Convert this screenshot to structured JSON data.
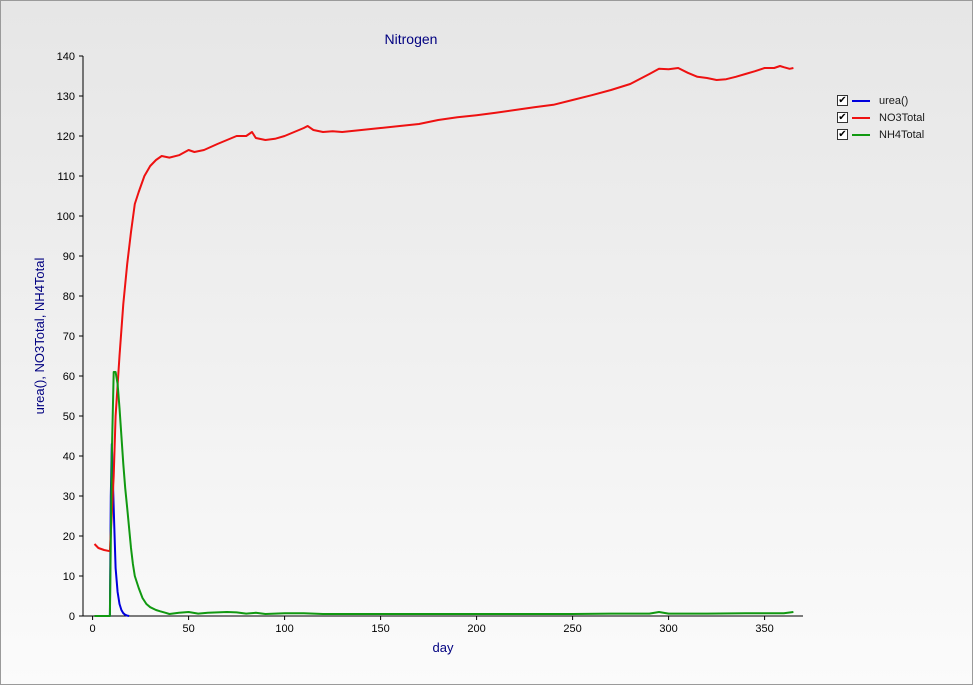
{
  "chart_data": {
    "type": "line",
    "title": "Nitrogen",
    "xlabel": "day",
    "ylabel": "urea(), NO3Total, NH4Total",
    "xlim": [
      -5,
      370
    ],
    "ylim": [
      0,
      140
    ],
    "xticks": [
      0,
      50,
      100,
      150,
      200,
      250,
      300,
      350
    ],
    "yticks": [
      0,
      10,
      20,
      30,
      40,
      50,
      60,
      70,
      80,
      90,
      100,
      110,
      120,
      130,
      140
    ],
    "grid": false,
    "legend_position": "right",
    "series": [
      {
        "name": "urea()",
        "color": "#0000dd",
        "points": [
          [
            1,
            0
          ],
          [
            9,
            0
          ],
          [
            9.5,
            30
          ],
          [
            10,
            43
          ],
          [
            11,
            27
          ],
          [
            12,
            12
          ],
          [
            13,
            6
          ],
          [
            14,
            3
          ],
          [
            15,
            1.5
          ],
          [
            16,
            0.7
          ],
          [
            17,
            0.3
          ],
          [
            18,
            0.1
          ],
          [
            19,
            0
          ]
        ]
      },
      {
        "name": "NO3Total",
        "color": "#ee1111",
        "points": [
          [
            1,
            18
          ],
          [
            3,
            17
          ],
          [
            6,
            16.5
          ],
          [
            9,
            16.2
          ],
          [
            11,
            35
          ],
          [
            12,
            50
          ],
          [
            14,
            65
          ],
          [
            16,
            78
          ],
          [
            18,
            88
          ],
          [
            20,
            96
          ],
          [
            22,
            103
          ],
          [
            24,
            106
          ],
          [
            27,
            110
          ],
          [
            30,
            112.5
          ],
          [
            33,
            114
          ],
          [
            36,
            115
          ],
          [
            40,
            114.6
          ],
          [
            45,
            115.2
          ],
          [
            50,
            116.5
          ],
          [
            53,
            116
          ],
          [
            58,
            116.5
          ],
          [
            65,
            118
          ],
          [
            70,
            119
          ],
          [
            75,
            120
          ],
          [
            80,
            120
          ],
          [
            83,
            121
          ],
          [
            85,
            119.5
          ],
          [
            90,
            119
          ],
          [
            95,
            119.3
          ],
          [
            100,
            120
          ],
          [
            105,
            121
          ],
          [
            110,
            122
          ],
          [
            112,
            122.5
          ],
          [
            115,
            121.5
          ],
          [
            120,
            121
          ],
          [
            125,
            121.2
          ],
          [
            130,
            121
          ],
          [
            140,
            121.5
          ],
          [
            150,
            122
          ],
          [
            160,
            122.5
          ],
          [
            170,
            123
          ],
          [
            180,
            124
          ],
          [
            190,
            124.7
          ],
          [
            200,
            125.2
          ],
          [
            210,
            125.8
          ],
          [
            220,
            126.5
          ],
          [
            230,
            127.2
          ],
          [
            240,
            127.8
          ],
          [
            250,
            129
          ],
          [
            260,
            130.2
          ],
          [
            270,
            131.5
          ],
          [
            280,
            133
          ],
          [
            290,
            135.5
          ],
          [
            295,
            136.8
          ],
          [
            300,
            136.7
          ],
          [
            305,
            137
          ],
          [
            310,
            135.8
          ],
          [
            315,
            134.8
          ],
          [
            320,
            134.5
          ],
          [
            325,
            134
          ],
          [
            330,
            134.2
          ],
          [
            335,
            134.8
          ],
          [
            340,
            135.5
          ],
          [
            345,
            136.2
          ],
          [
            350,
            137
          ],
          [
            355,
            137
          ],
          [
            358,
            137.5
          ],
          [
            360,
            137.2
          ],
          [
            363,
            136.8
          ],
          [
            365,
            137
          ]
        ]
      },
      {
        "name": "NH4Total",
        "color": "#119911",
        "points": [
          [
            1,
            0
          ],
          [
            9,
            0
          ],
          [
            10,
            40
          ],
          [
            11,
            61
          ],
          [
            12,
            61
          ],
          [
            13,
            58
          ],
          [
            14,
            52
          ],
          [
            15,
            45
          ],
          [
            16,
            38
          ],
          [
            17,
            32
          ],
          [
            18,
            27
          ],
          [
            19,
            22
          ],
          [
            20,
            17
          ],
          [
            21,
            13
          ],
          [
            22,
            10
          ],
          [
            24,
            7
          ],
          [
            26,
            4.5
          ],
          [
            28,
            3
          ],
          [
            30,
            2.2
          ],
          [
            33,
            1.5
          ],
          [
            35,
            1.2
          ],
          [
            38,
            0.8
          ],
          [
            40,
            0.5
          ],
          [
            45,
            0.8
          ],
          [
            50,
            1
          ],
          [
            55,
            0.6
          ],
          [
            60,
            0.8
          ],
          [
            70,
            1
          ],
          [
            75,
            0.9
          ],
          [
            80,
            0.6
          ],
          [
            85,
            0.8
          ],
          [
            90,
            0.5
          ],
          [
            100,
            0.7
          ],
          [
            110,
            0.7
          ],
          [
            120,
            0.5
          ],
          [
            150,
            0.5
          ],
          [
            200,
            0.5
          ],
          [
            250,
            0.5
          ],
          [
            270,
            0.6
          ],
          [
            290,
            0.6
          ],
          [
            295,
            1
          ],
          [
            300,
            0.6
          ],
          [
            320,
            0.6
          ],
          [
            340,
            0.7
          ],
          [
            360,
            0.7
          ],
          [
            365,
            1
          ]
        ]
      }
    ]
  }
}
